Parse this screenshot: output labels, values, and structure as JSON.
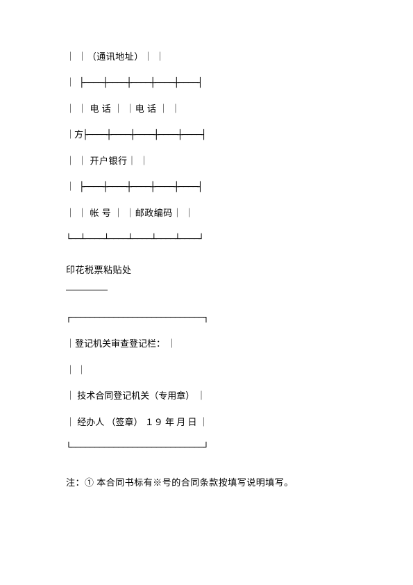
{
  "rows": {
    "row1": "｜ ｜（通讯地址）｜ ｜",
    "sep1": "｜ ├────┼────┼────┼────┼────┤",
    "row2": "｜ ｜ 电 话 ｜ ｜电 话 ｜ ｜",
    "sep2": "｜方├────┼────┼────┼────┼────┤",
    "row3": "｜ ｜ 开户银行｜ ｜",
    "sep3": "｜ ├────┼────┼────┼────┼────┤",
    "row4": "｜ ｜ 帐 号 ｜ ｜邮政编码｜ ｜",
    "sep4": "└──┴────┴────┴────┴────┴────┘"
  },
  "stamp": {
    "title": "印花税票粘贴处"
  },
  "registration": {
    "boxTop": "┌────────────────────────────┐",
    "line1": "｜登记机关审查登记栏： ｜",
    "line2": "｜ ｜",
    "line3": "｜ 技术合同登记机关（专用章） ｜",
    "line4": "｜ 经办人 （签章） １９ 年 月 日 ｜",
    "boxBottom": "└────────────────────────────┘"
  },
  "note": {
    "text": "注：① 本合同书标有※号的合同条款按填写说明填写。"
  }
}
